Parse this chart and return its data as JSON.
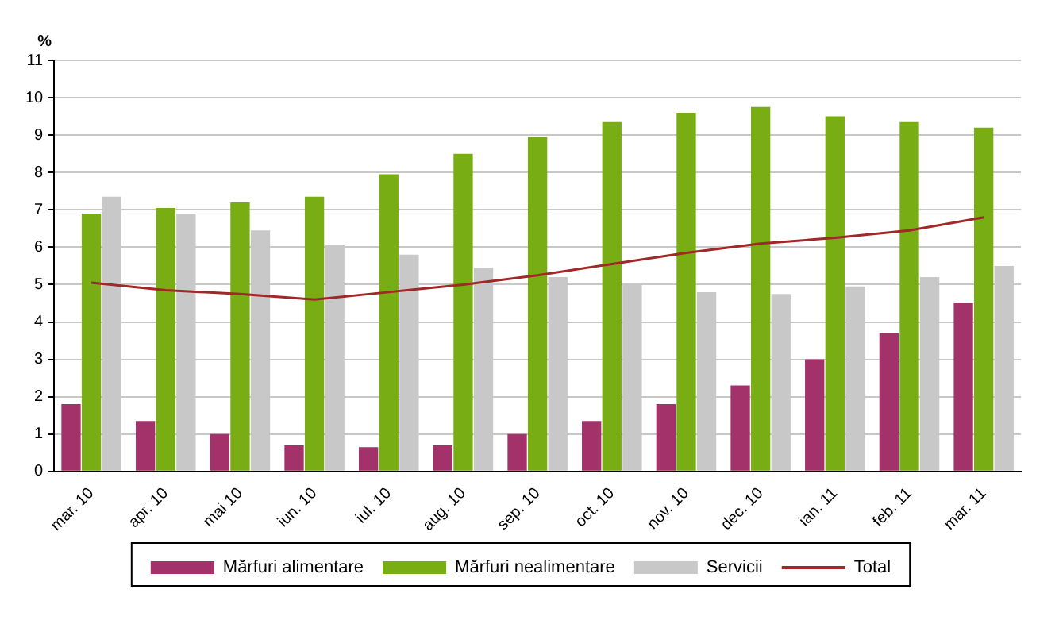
{
  "chart_data": {
    "type": "bar",
    "ylabel": "%",
    "categories": [
      "mar. 10",
      "apr. 10",
      "mai 10",
      "iun. 10",
      "iul. 10",
      "aug. 10",
      "sep. 10",
      "oct. 10",
      "nov. 10",
      "dec. 10",
      "ian. 11",
      "feb. 11",
      "mar. 11"
    ],
    "series": [
      {
        "name": "Mărfuri alimentare",
        "color": "#a3316a",
        "values": [
          1.8,
          1.35,
          1.0,
          0.7,
          0.65,
          0.7,
          1.0,
          1.35,
          1.8,
          2.3,
          3.0,
          3.7,
          4.5
        ]
      },
      {
        "name": "Mărfuri nealimentare",
        "color": "#78ad14",
        "values": [
          6.9,
          7.05,
          7.2,
          7.35,
          7.95,
          8.5,
          8.95,
          9.35,
          9.6,
          9.75,
          9.5,
          9.35,
          9.2
        ]
      },
      {
        "name": "Servicii",
        "color": "#c8c8c8",
        "values": [
          7.35,
          6.9,
          6.45,
          6.05,
          5.8,
          5.45,
          5.2,
          5.0,
          4.8,
          4.75,
          4.95,
          5.2,
          5.5
        ]
      },
      {
        "name": "Total",
        "type": "line",
        "color": "#a02828",
        "values": [
          5.05,
          4.85,
          4.75,
          4.6,
          4.8,
          5.0,
          5.25,
          5.55,
          5.85,
          6.1,
          6.25,
          6.45,
          6.8
        ]
      }
    ],
    "ylim": [
      0,
      11
    ],
    "yticks": [
      0,
      1,
      2,
      3,
      4,
      5,
      6,
      7,
      8,
      9,
      10,
      11
    ],
    "grid": "y",
    "legend": "bottom",
    "marker": "none"
  }
}
